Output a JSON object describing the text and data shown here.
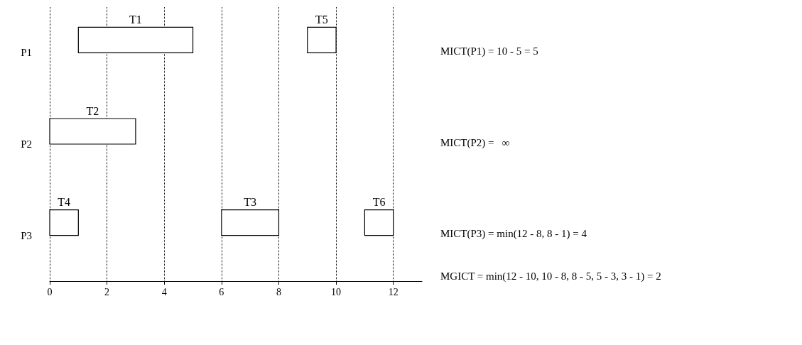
{
  "chart_data": {
    "type": "bar",
    "orientation": "horizontal",
    "categories": [
      "P1",
      "P2",
      "P3"
    ],
    "series": [
      {
        "name": "T1",
        "color": "#000000",
        "values": [
          4,
          null,
          null
        ],
        "base": [
          1,
          null,
          null
        ]
      },
      {
        "name": "T5",
        "color": "#000000",
        "values": [
          1,
          null,
          null
        ],
        "base": [
          9,
          null,
          null
        ]
      },
      {
        "name": "T2",
        "color": "#000000",
        "values": [
          null,
          3,
          null
        ],
        "base": [
          null,
          0,
          null
        ]
      },
      {
        "name": "T4",
        "color": "#000000",
        "values": [
          null,
          null,
          1
        ],
        "base": [
          null,
          null,
          0
        ]
      },
      {
        "name": "T3",
        "color": "#000000",
        "values": [
          null,
          null,
          2
        ],
        "base": [
          null,
          null,
          6
        ]
      },
      {
        "name": "T6",
        "color": "#000000",
        "values": [
          null,
          null,
          1
        ],
        "base": [
          null,
          null,
          11
        ]
      }
    ],
    "xlim": [
      0,
      13
    ],
    "xticks": [
      0,
      2,
      4,
      6,
      8,
      10,
      12
    ],
    "grid": "x",
    "legend": false,
    "annotations": [
      "MICT(P1) = 10 - 5 = 5",
      "MICT(P2) =   ∞",
      "MICT(P3) = min(12 - 8, 8 - 1) = 4",
      "MGICT = min(12 - 10, 10 - 8, 8 - 5, 5 - 3, 3 - 1) = 2"
    ]
  }
}
